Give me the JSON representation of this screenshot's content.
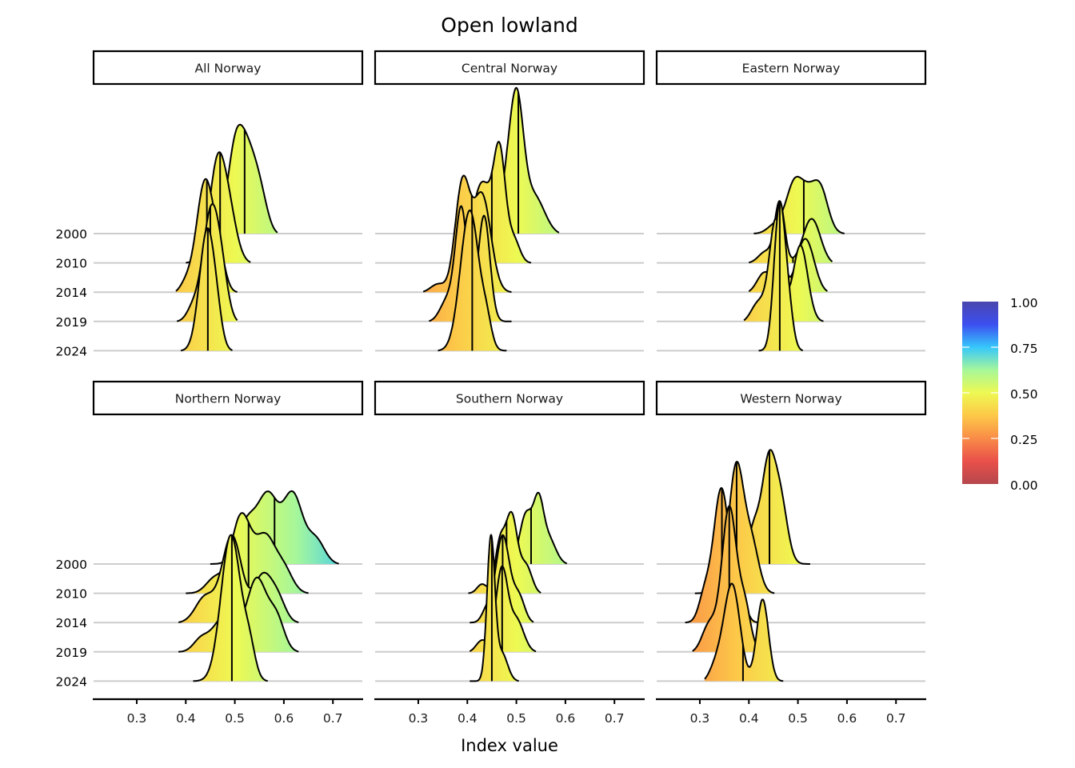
{
  "chart_data": {
    "type": "ridgeline",
    "title": "Open lowland",
    "xlabel": "Index value",
    "ylabel": "",
    "xlim": [
      0.212,
      0.76
    ],
    "x_ticks": [
      "0.3",
      "0.4",
      "0.5",
      "0.6",
      "0.7"
    ],
    "x_tick_values": [
      0.3,
      0.4,
      0.5,
      0.6,
      0.7
    ],
    "years": [
      "2000",
      "2010",
      "2014",
      "2019",
      "2024"
    ],
    "density_scale_note": "heights are peak density expressed in ridge-row units",
    "grid": "horizontal baselines only",
    "legend": {
      "type": "colorbar",
      "placement": "right",
      "range": [
        0,
        1
      ],
      "ticks": [
        "0.00",
        "0.25",
        "0.50",
        "0.75",
        "1.00"
      ],
      "tick_values": [
        0,
        0.25,
        0.5,
        0.75,
        1.0
      ],
      "colors": [
        "#b5474c",
        "#e9504a",
        "#f98b47",
        "#fdc848",
        "#eef952",
        "#a6f79a",
        "#36c7fb",
        "#3c4ff0",
        "#4a46ae"
      ]
    },
    "panels": [
      {
        "name": "All Norway",
        "ridges": [
          {
            "year": "2000",
            "median": 0.52,
            "range": [
              0.45,
              0.587
            ],
            "components": [
              [
                0.5,
                0.016,
                0.9
              ],
              [
                0.528,
                0.02,
                1.0
              ],
              [
                0.555,
                0.014,
                0.25
              ]
            ],
            "peak": 3.75
          },
          {
            "year": "2010",
            "median": 0.47,
            "range": [
              0.4,
              0.532
            ],
            "components": [
              [
                0.462,
                0.014,
                0.9
              ],
              [
                0.482,
                0.018,
                0.95
              ],
              [
                0.44,
                0.015,
                0.15
              ]
            ],
            "peak": 3.8
          },
          {
            "year": "2014",
            "median": 0.443,
            "range": [
              0.38,
              0.505
            ],
            "components": [
              [
                0.44,
                0.018,
                1.0
              ],
              [
                0.47,
                0.012,
                0.2
              ],
              [
                0.4,
                0.012,
                0.08
              ]
            ],
            "peak": 3.9
          },
          {
            "year": "2019",
            "median": 0.45,
            "range": [
              0.382,
              0.505
            ],
            "components": [
              [
                0.452,
                0.017,
                1.0
              ],
              [
                0.475,
                0.013,
                0.25
              ],
              [
                0.415,
                0.013,
                0.12
              ]
            ],
            "peak": 4.05
          },
          {
            "year": "2024",
            "median": 0.445,
            "range": [
              0.39,
              0.495
            ],
            "components": [
              [
                0.444,
                0.016,
                1.0
              ],
              [
                0.465,
                0.01,
                0.1
              ]
            ],
            "peak": 4.2
          }
        ]
      },
      {
        "name": "Central Norway",
        "ridges": [
          {
            "year": "2000",
            "median": 0.504,
            "range": [
              0.43,
              0.587
            ],
            "components": [
              [
                0.5,
                0.014,
                1.0
              ],
              [
                0.478,
                0.012,
                0.25
              ],
              [
                0.535,
                0.022,
                0.3
              ]
            ],
            "peak": 5.0
          },
          {
            "year": "2010",
            "median": 0.45,
            "range": [
              0.37,
              0.53
            ],
            "components": [
              [
                0.466,
                0.012,
                0.9
              ],
              [
                0.43,
                0.02,
                0.7
              ],
              [
                0.495,
                0.012,
                0.2
              ]
            ],
            "peak": 4.15
          },
          {
            "year": "2014",
            "median": 0.409,
            "range": [
              0.31,
              0.49
            ],
            "components": [
              [
                0.39,
                0.015,
                1.0
              ],
              [
                0.43,
                0.018,
                0.9
              ],
              [
                0.34,
                0.015,
                0.08
              ]
            ],
            "peak": 4.0
          },
          {
            "year": "2019",
            "median": 0.41,
            "range": [
              0.322,
              0.49
            ],
            "components": [
              [
                0.388,
                0.012,
                1.0
              ],
              [
                0.434,
                0.012,
                0.95
              ],
              [
                0.36,
                0.015,
                0.2
              ]
            ],
            "peak": 3.95
          },
          {
            "year": "2024",
            "median": 0.41,
            "range": [
              0.34,
              0.48
            ],
            "components": [
              [
                0.405,
                0.019,
                1.0
              ],
              [
                0.44,
                0.01,
                0.15
              ]
            ],
            "peak": 4.8
          }
        ]
      },
      {
        "name": "Eastern Norway",
        "ridges": [
          {
            "year": "2000",
            "median": 0.512,
            "range": [
              0.41,
              0.595
            ],
            "components": [
              [
                0.492,
                0.016,
                1.0
              ],
              [
                0.545,
                0.016,
                0.95
              ],
              [
                0.518,
                0.015,
                0.6
              ],
              [
                0.455,
                0.016,
                0.2
              ]
            ],
            "peak": 1.95
          },
          {
            "year": "2010",
            "median": 0.49,
            "range": [
              0.4,
              0.57
            ],
            "components": [
              [
                0.463,
                0.01,
                1.0
              ],
              [
                0.528,
                0.018,
                0.75
              ],
              [
                0.435,
                0.015,
                0.2
              ]
            ],
            "peak": 2.15
          },
          {
            "year": "2014",
            "median": 0.487,
            "range": [
              0.4,
              0.56
            ],
            "components": [
              [
                0.462,
                0.009,
                1.0
              ],
              [
                0.515,
                0.018,
                0.65
              ],
              [
                0.432,
                0.015,
                0.25
              ]
            ],
            "peak": 3.0
          },
          {
            "year": "2019",
            "median": 0.478,
            "range": [
              0.39,
              0.552
            ],
            "components": [
              [
                0.455,
                0.013,
                1.0
              ],
              [
                0.505,
                0.015,
                0.75
              ],
              [
                0.42,
                0.015,
                0.2
              ]
            ],
            "peak": 3.55
          },
          {
            "year": "2024",
            "median": 0.463,
            "range": [
              0.42,
              0.51
            ],
            "components": [
              [
                0.462,
                0.011,
                1.0
              ],
              [
                0.48,
                0.01,
                0.3
              ]
            ],
            "peak": 5.1
          }
        ]
      },
      {
        "name": "Northern Norway",
        "ridges": [
          {
            "year": "2000",
            "median": 0.581,
            "range": [
              0.45,
              0.712
            ],
            "components": [
              [
                0.568,
                0.02,
                0.95
              ],
              [
                0.618,
                0.02,
                1.0
              ],
              [
                0.525,
                0.02,
                0.6
              ],
              [
                0.665,
                0.018,
                0.35
              ]
            ],
            "peak": 2.5
          },
          {
            "year": "2010",
            "median": 0.528,
            "range": [
              0.4,
              0.65
            ],
            "components": [
              [
                0.513,
                0.02,
                1.0
              ],
              [
                0.562,
                0.02,
                0.7
              ],
              [
                0.6,
                0.018,
                0.3
              ],
              [
                0.46,
                0.018,
                0.2
              ]
            ],
            "peak": 2.75
          },
          {
            "year": "2014",
            "median": 0.49,
            "range": [
              0.385,
              0.63
            ],
            "components": [
              [
                0.494,
                0.02,
                1.0
              ],
              [
                0.558,
                0.02,
                0.55
              ],
              [
                0.44,
                0.02,
                0.3
              ],
              [
                0.59,
                0.015,
                0.2
              ]
            ],
            "peak": 3.0
          },
          {
            "year": "2019",
            "median": 0.51,
            "range": [
              0.385,
              0.63
            ],
            "components": [
              [
                0.545,
                0.02,
                1.0
              ],
              [
                0.585,
                0.016,
                0.45
              ],
              [
                0.48,
                0.025,
                0.5
              ],
              [
                0.43,
                0.015,
                0.15
              ]
            ],
            "peak": 2.55
          },
          {
            "year": "2024",
            "median": 0.494,
            "range": [
              0.415,
              0.567
            ],
            "components": [
              [
                0.492,
                0.02,
                1.0
              ],
              [
                0.53,
                0.012,
                0.2
              ]
            ],
            "peak": 5.0
          }
        ]
      },
      {
        "name": "Southern Norway",
        "ridges": [
          {
            "year": "2000",
            "median": 0.53,
            "range": [
              0.47,
              0.603
            ],
            "components": [
              [
                0.52,
                0.013,
                0.95
              ],
              [
                0.545,
                0.01,
                1.0
              ],
              [
                0.565,
                0.015,
                0.5
              ]
            ],
            "peak": 2.45
          },
          {
            "year": "2010",
            "median": 0.48,
            "range": [
              0.402,
              0.55
            ],
            "components": [
              [
                0.49,
                0.012,
                1.0
              ],
              [
                0.466,
                0.01,
                0.6
              ],
              [
                0.52,
                0.012,
                0.35
              ],
              [
                0.43,
                0.01,
                0.12
              ]
            ],
            "peak": 2.8
          },
          {
            "year": "2014",
            "median": 0.472,
            "range": [
              0.405,
              0.535
            ],
            "components": [
              [
                0.472,
                0.014,
                1.0
              ],
              [
                0.505,
                0.012,
                0.3
              ],
              [
                0.44,
                0.01,
                0.15
              ]
            ],
            "peak": 3.0
          },
          {
            "year": "2019",
            "median": 0.471,
            "range": [
              0.405,
              0.54
            ],
            "components": [
              [
                0.47,
                0.012,
                1.0
              ],
              [
                0.5,
                0.015,
                0.4
              ],
              [
                0.43,
                0.012,
                0.15
              ]
            ],
            "peak": 2.95
          },
          {
            "year": "2024",
            "median": 0.45,
            "range": [
              0.405,
              0.505
            ],
            "components": [
              [
                0.448,
                0.008,
                1.0
              ],
              [
                0.47,
                0.012,
                0.2
              ]
            ],
            "peak": 5.0
          }
        ]
      },
      {
        "name": "Western Norway",
        "ridges": [
          {
            "year": "2000",
            "median": 0.442,
            "range": [
              0.36,
              0.525
            ],
            "components": [
              [
                0.44,
                0.014,
                1.0
              ],
              [
                0.465,
                0.014,
                0.6
              ],
              [
                0.41,
                0.012,
                0.35
              ]
            ],
            "peak": 3.9
          },
          {
            "year": "2010",
            "median": 0.375,
            "range": [
              0.29,
              0.452
            ],
            "components": [
              [
                0.374,
                0.015,
                1.0
              ],
              [
                0.405,
                0.015,
                0.4
              ],
              [
                0.335,
                0.012,
                0.1
              ]
            ],
            "peak": 4.5
          },
          {
            "year": "2014",
            "median": 0.345,
            "range": [
              0.27,
              0.42
            ],
            "components": [
              [
                0.344,
                0.016,
                1.0
              ],
              [
                0.38,
                0.012,
                0.25
              ],
              [
                0.31,
                0.012,
                0.2
              ]
            ],
            "peak": 4.6
          },
          {
            "year": "2019",
            "median": 0.36,
            "range": [
              0.285,
              0.44
            ],
            "components": [
              [
                0.36,
                0.015,
                1.0
              ],
              [
                0.392,
                0.012,
                0.3
              ],
              [
                0.32,
                0.015,
                0.2
              ]
            ],
            "peak": 5.0
          },
          {
            "year": "2024",
            "median": 0.388,
            "range": [
              0.31,
              0.47
            ],
            "components": [
              [
                0.366,
                0.016,
                1.0
              ],
              [
                0.428,
                0.012,
                0.85
              ],
              [
                0.335,
                0.015,
                0.2
              ]
            ],
            "peak": 3.4
          }
        ]
      }
    ]
  }
}
